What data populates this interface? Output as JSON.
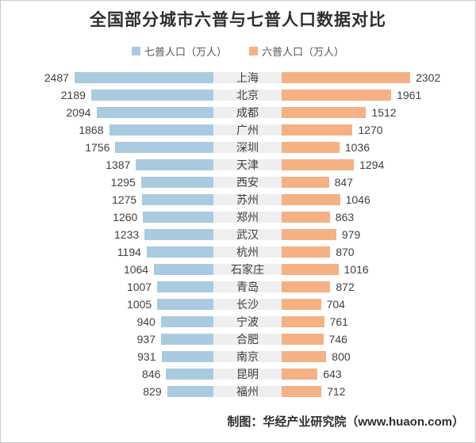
{
  "title": "全国部分城市六普与七普人口数据对比",
  "footer": "制图：华经产业研究院（www.huaon.com）",
  "colors": {
    "census7_blue": "#a9cbdf",
    "census6_orange": "#f4b183",
    "city_band_gray": "#efefef",
    "text": "#404040"
  },
  "legend": {
    "items": [
      {
        "label": "七普人口（万人）",
        "color": "#a9cbdf"
      },
      {
        "label": "六普人口（万人）",
        "color": "#f4b183"
      }
    ]
  },
  "chart_data": {
    "type": "bar",
    "variant": "diverging-horizontal",
    "title": "全国部分城市六普与七普人口数据对比",
    "legend_position": "top",
    "value_unit": "万人",
    "value_scale_max": 2500,
    "categories": [
      "上海",
      "北京",
      "成都",
      "广州",
      "深圳",
      "天津",
      "西安",
      "苏州",
      "郑州",
      "武汉",
      "杭州",
      "石家庄",
      "青岛",
      "长沙",
      "宁波",
      "合肥",
      "南京",
      "昆明",
      "福州"
    ],
    "series": [
      {
        "name": "七普人口（万人）",
        "side": "left",
        "color": "#a9cbdf",
        "values": [
          2487,
          2189,
          2094,
          1868,
          1756,
          1387,
          1295,
          1275,
          1260,
          1233,
          1194,
          1064,
          1007,
          1005,
          940,
          937,
          931,
          846,
          829
        ]
      },
      {
        "name": "六普人口（万人）",
        "side": "right",
        "color": "#f4b183",
        "values": [
          2302,
          1961,
          1512,
          1270,
          1036,
          1294,
          847,
          1046,
          863,
          979,
          870,
          1016,
          872,
          704,
          761,
          746,
          800,
          643,
          712
        ]
      }
    ]
  }
}
